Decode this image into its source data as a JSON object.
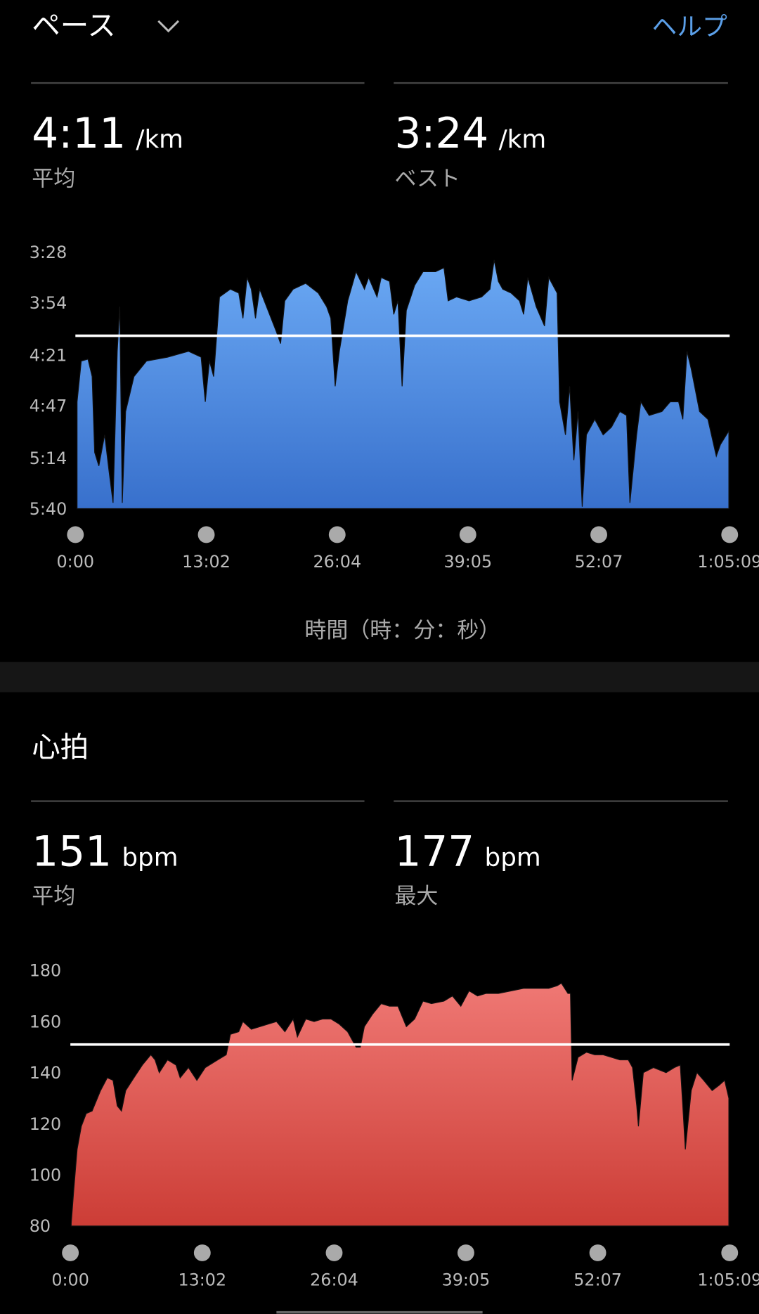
{
  "header": {
    "help": "ヘルプ"
  },
  "chart_data": [
    {
      "type": "area",
      "title": "ペース",
      "x_label": "時間（時：分：秒）",
      "stats": [
        {
          "value": 251,
          "label": "4:11",
          "unit": "/km",
          "name": "平均"
        },
        {
          "label": "3:24",
          "unit": "/km",
          "name": "ベスト"
        }
      ],
      "gradient": [
        "#6ba9f4",
        "#3870cc"
      ],
      "reference_color": "#ffffff",
      "xlim": [
        0,
        3909
      ],
      "ylim": [
        340,
        208
      ],
      "xticks": [
        {
          "value": 0,
          "label": "0:00"
        },
        {
          "value": 782,
          "label": "13:02"
        },
        {
          "value": 1564,
          "label": "26:04"
        },
        {
          "value": 2345,
          "label": "39:05"
        },
        {
          "value": 3127,
          "label": "52:07"
        },
        {
          "value": 3909,
          "label": "1:05:09"
        }
      ],
      "yticks": [
        {
          "value": 208,
          "label": "3:28"
        },
        {
          "value": 234,
          "label": "3:54"
        },
        {
          "value": 261,
          "label": "4:21"
        },
        {
          "value": 287,
          "label": "4:47"
        },
        {
          "value": 314,
          "label": "5:14"
        },
        {
          "value": 340,
          "label": "5:40"
        }
      ],
      "x": [
        10,
        35,
        75,
        100,
        115,
        140,
        175,
        200,
        225,
        250,
        265,
        280,
        300,
        350,
        425,
        551,
        676,
        751,
        776,
        801,
        826,
        861,
        926,
        976,
        1001,
        1026,
        1051,
        1076,
        1101,
        1151,
        1201,
        1226,
        1251,
        1301,
        1376,
        1451,
        1501,
        1526,
        1552,
        1577,
        1627,
        1677,
        1727,
        1752,
        1802,
        1827,
        1877,
        1902,
        1927,
        1952,
        1977,
        2027,
        2077,
        2152,
        2202,
        2227,
        2277,
        2352,
        2427,
        2477,
        2502,
        2527,
        2553,
        2603,
        2653,
        2678,
        2703,
        2753,
        2803,
        2828,
        2878,
        2893,
        2928,
        2953,
        2978,
        3003,
        3028,
        3053,
        3103,
        3153,
        3203,
        3253,
        3293,
        3313,
        3353,
        3378,
        3428,
        3504,
        3554,
        3604,
        3629,
        3654,
        3679,
        3729,
        3779,
        3829,
        3854,
        3904
      ],
      "values": [
        285,
        264,
        263,
        272,
        311,
        318,
        302,
        320,
        337,
        259,
        236,
        337,
        290,
        272,
        264,
        262,
        259,
        262,
        285,
        264,
        272,
        231,
        227,
        229,
        242,
        221,
        227,
        242,
        227,
        238,
        249,
        255,
        233,
        227,
        224,
        229,
        236,
        242,
        277,
        259,
        233,
        218,
        227,
        221,
        231,
        221,
        223,
        240,
        233,
        277,
        238,
        225,
        218,
        218,
        216,
        233,
        231,
        233,
        231,
        227,
        212,
        223,
        227,
        229,
        233,
        240,
        221,
        236,
        246,
        221,
        229,
        285,
        302,
        277,
        315,
        290,
        339,
        302,
        294,
        302,
        298,
        290,
        292,
        337,
        302,
        285,
        292,
        290,
        285,
        285,
        294,
        259,
        268,
        290,
        294,
        313,
        307,
        300
      ]
    },
    {
      "type": "area",
      "title": "心拍",
      "stats": [
        {
          "value": 151,
          "unit": "bpm",
          "name": "平均"
        },
        {
          "value": 177,
          "unit": "bpm",
          "name": "最大"
        }
      ],
      "gradient": [
        "#ef7874",
        "#cc3d36"
      ],
      "reference_color": "#ffffff",
      "xlim": [
        0,
        3909
      ],
      "ylim": [
        80,
        180
      ],
      "xticks": [
        {
          "value": 0,
          "label": "0:00"
        },
        {
          "value": 782,
          "label": "13:02"
        },
        {
          "value": 1564,
          "label": "26:04"
        },
        {
          "value": 2345,
          "label": "39:05"
        },
        {
          "value": 3127,
          "label": "52:07"
        },
        {
          "value": 3909,
          "label": "1:05:09"
        }
      ],
      "yticks": [
        80,
        100,
        120,
        140,
        160,
        180
      ],
      "x": [
        5,
        20,
        40,
        65,
        94,
        129,
        179,
        219,
        253,
        278,
        303,
        328,
        377,
        427,
        477,
        502,
        527,
        576,
        626,
        651,
        700,
        750,
        800,
        874,
        924,
        949,
        998,
        1023,
        1073,
        1123,
        1172,
        1222,
        1272,
        1321,
        1346,
        1396,
        1445,
        1495,
        1545,
        1594,
        1644,
        1694,
        1719,
        1743,
        1793,
        1843,
        1892,
        1942,
        1992,
        2041,
        2091,
        2141,
        2215,
        2265,
        2315,
        2364,
        2414,
        2464,
        2538,
        2613,
        2687,
        2762,
        2836,
        2886,
        2911,
        2950,
        2965,
        2975,
        3010,
        3060,
        3109,
        3159,
        3209,
        3258,
        3308,
        3333,
        3358,
        3368,
        3397,
        3457,
        3532,
        3581,
        3616,
        3631,
        3646,
        3681,
        3715,
        3755,
        3805,
        3845,
        3879,
        3904
      ],
      "values": [
        81,
        94,
        110,
        119,
        124,
        125,
        133,
        138,
        137,
        127,
        125,
        133,
        138,
        143,
        147,
        145,
        140,
        145,
        143,
        138,
        142,
        137,
        142,
        145,
        147,
        155,
        156,
        160,
        157,
        158,
        159,
        160,
        156,
        161,
        154,
        161,
        160,
        161,
        161,
        159,
        156,
        150,
        150,
        158,
        163,
        167,
        166,
        166,
        158,
        161,
        168,
        167,
        168,
        170,
        166,
        172,
        170,
        171,
        171,
        172,
        173,
        173,
        173,
        174,
        175,
        171,
        171,
        137,
        146,
        148,
        147,
        147,
        146,
        145,
        145,
        142,
        127,
        119,
        140,
        142,
        140,
        142,
        143,
        127,
        110,
        133,
        140,
        137,
        133,
        135,
        137,
        130
      ]
    }
  ]
}
